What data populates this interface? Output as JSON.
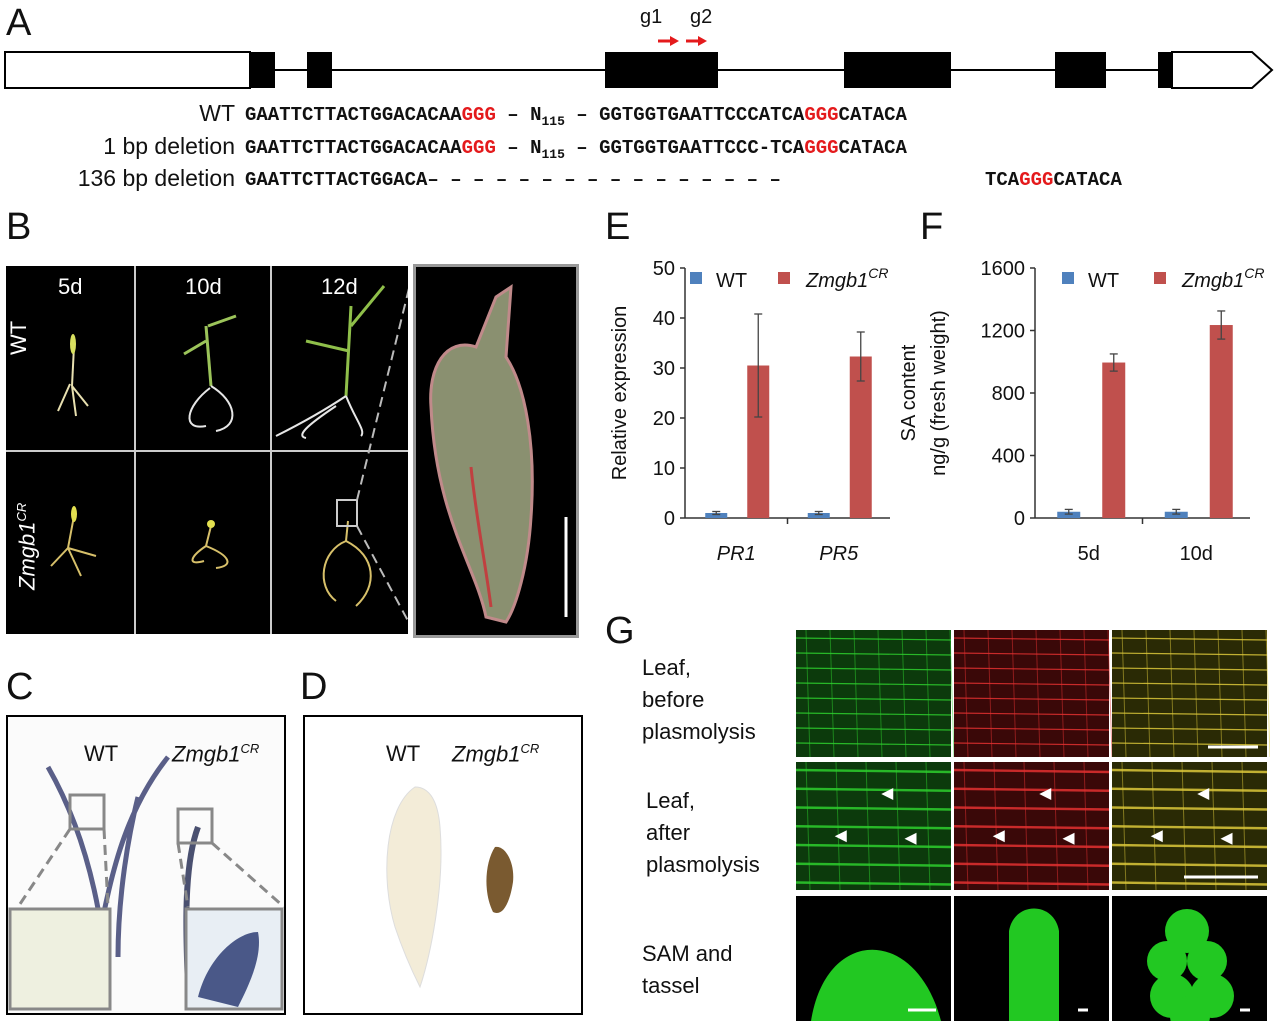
{
  "panels": {
    "a": "A",
    "b": "B",
    "c": "C",
    "d": "D",
    "e": "E",
    "f": "F",
    "g": "G"
  },
  "panel_a": {
    "guides": [
      "g1",
      "g2"
    ],
    "rows": [
      {
        "label": "WT",
        "s1": "GAATTCTTACTGGACACAA",
        "pam1": "GGG",
        "mid": " – N",
        "sub": "115",
        "mid2": " – ",
        "s2": "GGTGGTGAATTCCCATCA",
        "pam2": "GGG",
        "s3": "CATACA"
      },
      {
        "label": "1 bp deletion",
        "s1": "GAATTCTTACTGGACACAA",
        "pam1": "GGG",
        "mid": " – N",
        "sub": "115",
        "mid2": " – ",
        "s2": "GGTGGTGAATTCCC-TCA",
        "pam2": "GGG",
        "s3": "CATACA"
      },
      {
        "label": "136 bp deletion",
        "s1": "GAATTCTTACTGGACA– – – – – – – – – – – – – – – –",
        "pam1": "",
        "mid": "",
        "sub": "",
        "mid2": "",
        "s2": "TCA",
        "pam2": "GGG",
        "s3": "CATACA"
      }
    ]
  },
  "panel_b": {
    "days": [
      "5d",
      "10d",
      "12d"
    ],
    "genotypes": [
      "WT",
      "Zmgb1",
      "CR"
    ]
  },
  "panel_c": {
    "wt": "WT",
    "mut": "Zmgb1",
    "sup": "CR"
  },
  "panel_d": {
    "wt": "WT",
    "mut": "Zmgb1",
    "sup": "CR"
  },
  "legend": {
    "wt": "WT",
    "mut": "Zmgb1",
    "sup": "CR"
  },
  "colors": {
    "wt": "#4f81bd",
    "mut": "#c0504d"
  },
  "chart_data": [
    {
      "type": "bar",
      "panel": "E",
      "categories": [
        "PR1",
        "PR5"
      ],
      "series": [
        {
          "name": "WT",
          "values": [
            1,
            1
          ],
          "errors": [
            0.3,
            0.3
          ]
        },
        {
          "name": "Zmgb1CR",
          "values": [
            30.5,
            32.3
          ],
          "errors": [
            10.3,
            4.9
          ]
        }
      ],
      "ylabel": "Relative expression",
      "ylim": [
        0,
        50
      ],
      "yticks": [
        0,
        10,
        20,
        30,
        40,
        50
      ]
    },
    {
      "type": "bar",
      "panel": "F",
      "categories": [
        "5d",
        "10d"
      ],
      "series": [
        {
          "name": "WT",
          "values": [
            40,
            40
          ],
          "errors": [
            15,
            15
          ]
        },
        {
          "name": "Zmgb1CR",
          "values": [
            995,
            1235
          ],
          "errors": [
            55,
            90
          ]
        }
      ],
      "ylabel": "SA content",
      "ylabel2": "ng/g (fresh weight)",
      "ylim": [
        0,
        1600
      ],
      "yticks": [
        0,
        400,
        800,
        1200,
        1600
      ]
    }
  ],
  "panel_g": {
    "rows": [
      [
        "Leaf,",
        "before",
        "plasmolysis"
      ],
      [
        "Leaf,",
        "after",
        "plasmolysis"
      ],
      [
        "SAM and",
        "tassel"
      ]
    ]
  }
}
